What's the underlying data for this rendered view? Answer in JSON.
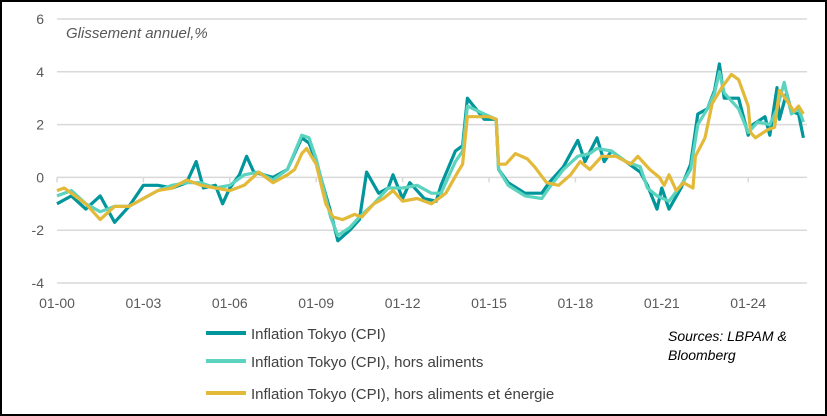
{
  "chart_data": {
    "type": "line",
    "subtitle": "Glissement annuel,%",
    "ylim": [
      -4,
      6
    ],
    "yticks": [
      "6",
      "4",
      "2",
      "0",
      "-2",
      "-4"
    ],
    "xticks": [
      "01-00",
      "01-03",
      "01-06",
      "01-09",
      "01-12",
      "01-15",
      "01-18",
      "01-21",
      "01-24"
    ],
    "grid": true,
    "legend_position": "bottom-left",
    "source": [
      "Sources: LBPAM &",
      "Bloomberg"
    ],
    "colors": {
      "tokyo_cpi": "#00969B",
      "ex_food": "#5BD3BE",
      "ex_food_energy": "#E3B93A"
    },
    "series": [
      {
        "name": "Inflation Tokyo (CPI)",
        "color": "#00969B",
        "points": [
          [
            "2000-01",
            -1.0
          ],
          [
            "2000-07",
            -0.7
          ],
          [
            "2001-01",
            -1.2
          ],
          [
            "2001-07",
            -0.7
          ],
          [
            "2002-01",
            -1.7
          ],
          [
            "2002-07",
            -1.1
          ],
          [
            "2003-01",
            -0.3
          ],
          [
            "2003-07",
            -0.3
          ],
          [
            "2004-01",
            -0.4
          ],
          [
            "2004-07",
            -0.2
          ],
          [
            "2004-11",
            0.6
          ],
          [
            "2005-02",
            -0.4
          ],
          [
            "2005-07",
            -0.3
          ],
          [
            "2005-10",
            -1.0
          ],
          [
            "2006-01",
            -0.4
          ],
          [
            "2006-05",
            0.1
          ],
          [
            "2006-08",
            0.8
          ],
          [
            "2006-11",
            0.2
          ],
          [
            "2007-07",
            0.0
          ],
          [
            "2008-01",
            0.3
          ],
          [
            "2008-07",
            1.5
          ],
          [
            "2008-10",
            1.3
          ],
          [
            "2009-01",
            0.6
          ],
          [
            "2009-07",
            -1.3
          ],
          [
            "2009-10",
            -2.4
          ],
          [
            "2010-03",
            -2.0
          ],
          [
            "2010-07",
            -1.6
          ],
          [
            "2010-10",
            0.2
          ],
          [
            "2011-03",
            -0.6
          ],
          [
            "2011-07",
            -0.4
          ],
          [
            "2011-09",
            0.1
          ],
          [
            "2012-01",
            -0.8
          ],
          [
            "2012-04",
            -0.2
          ],
          [
            "2012-10",
            -0.8
          ],
          [
            "2013-03",
            -0.9
          ],
          [
            "2013-05",
            -0.3
          ],
          [
            "2013-11",
            1.0
          ],
          [
            "2014-02",
            1.2
          ],
          [
            "2014-04",
            3.0
          ],
          [
            "2014-11",
            2.2
          ],
          [
            "2015-04",
            2.2
          ],
          [
            "2015-05",
            0.3
          ],
          [
            "2015-09",
            -0.2
          ],
          [
            "2016-04",
            -0.6
          ],
          [
            "2016-11",
            -0.6
          ],
          [
            "2017-02",
            -0.2
          ],
          [
            "2017-08",
            0.4
          ],
          [
            "2018-02",
            1.4
          ],
          [
            "2018-05",
            0.6
          ],
          [
            "2018-10",
            1.5
          ],
          [
            "2019-01",
            0.6
          ],
          [
            "2019-04",
            1.0
          ],
          [
            "2019-10",
            0.6
          ],
          [
            "2020-04",
            0.2
          ],
          [
            "2020-07",
            -0.3
          ],
          [
            "2020-11",
            -1.2
          ],
          [
            "2021-01",
            -0.4
          ],
          [
            "2021-04",
            -1.2
          ],
          [
            "2021-09",
            -0.4
          ],
          [
            "2022-01",
            0.5
          ],
          [
            "2022-04",
            2.4
          ],
          [
            "2022-08",
            2.6
          ],
          [
            "2022-11",
            3.3
          ],
          [
            "2023-01",
            4.3
          ],
          [
            "2023-03",
            3.0
          ],
          [
            "2023-09",
            3.0
          ],
          [
            "2024-01",
            1.6
          ],
          [
            "2024-03",
            2.0
          ],
          [
            "2024-08",
            2.3
          ],
          [
            "2024-10",
            1.6
          ],
          [
            "2025-01",
            3.4
          ],
          [
            "2025-02",
            2.2
          ],
          [
            "2025-05",
            3.2
          ],
          [
            "2025-07",
            2.5
          ],
          [
            "2025-10",
            2.4
          ],
          [
            "2025-12",
            1.5
          ]
        ]
      },
      {
        "name": "Inflation Tokyo (CPI), hors aliments",
        "color": "#5BD3BE",
        "points": [
          [
            "2000-01",
            -0.7
          ],
          [
            "2000-07",
            -0.5
          ],
          [
            "2001-01",
            -1.0
          ],
          [
            "2001-07",
            -1.3
          ],
          [
            "2002-01",
            -1.1
          ],
          [
            "2002-07",
            -1.1
          ],
          [
            "2003-01",
            -0.8
          ],
          [
            "2003-07",
            -0.5
          ],
          [
            "2004-01",
            -0.3
          ],
          [
            "2004-07",
            -0.2
          ],
          [
            "2005-01",
            -0.2
          ],
          [
            "2005-07",
            -0.4
          ],
          [
            "2006-01",
            -0.3
          ],
          [
            "2006-07",
            0.1
          ],
          [
            "2007-01",
            0.2
          ],
          [
            "2007-07",
            -0.1
          ],
          [
            "2008-01",
            0.3
          ],
          [
            "2008-07",
            1.6
          ],
          [
            "2008-10",
            1.5
          ],
          [
            "2009-01",
            0.7
          ],
          [
            "2009-07",
            -1.5
          ],
          [
            "2009-10",
            -2.2
          ],
          [
            "2010-03",
            -1.9
          ],
          [
            "2010-07",
            -1.5
          ],
          [
            "2011-01",
            -1.0
          ],
          [
            "2011-07",
            -0.4
          ],
          [
            "2012-01",
            -0.4
          ],
          [
            "2012-07",
            -0.3
          ],
          [
            "2013-01",
            -0.6
          ],
          [
            "2013-05",
            -0.6
          ],
          [
            "2013-11",
            0.6
          ],
          [
            "2014-02",
            1.0
          ],
          [
            "2014-04",
            2.7
          ],
          [
            "2014-11",
            2.4
          ],
          [
            "2015-04",
            2.2
          ],
          [
            "2015-05",
            0.3
          ],
          [
            "2015-09",
            -0.3
          ],
          [
            "2016-04",
            -0.7
          ],
          [
            "2016-11",
            -0.8
          ],
          [
            "2017-02",
            -0.4
          ],
          [
            "2017-08",
            0.3
          ],
          [
            "2018-02",
            0.8
          ],
          [
            "2018-07",
            0.9
          ],
          [
            "2018-10",
            1.1
          ],
          [
            "2019-04",
            1.0
          ],
          [
            "2019-10",
            0.6
          ],
          [
            "2020-04",
            0.4
          ],
          [
            "2020-07",
            -0.4
          ],
          [
            "2020-11",
            -0.7
          ],
          [
            "2021-04",
            -0.9
          ],
          [
            "2021-09",
            -0.3
          ],
          [
            "2022-01",
            0.3
          ],
          [
            "2022-04",
            2.0
          ],
          [
            "2022-08",
            2.6
          ],
          [
            "2022-11",
            3.2
          ],
          [
            "2023-01",
            4.0
          ],
          [
            "2023-03",
            3.2
          ],
          [
            "2023-09",
            2.6
          ],
          [
            "2024-01",
            1.7
          ],
          [
            "2024-05",
            2.1
          ],
          [
            "2024-10",
            2.0
          ],
          [
            "2025-01",
            2.6
          ],
          [
            "2025-04",
            3.6
          ],
          [
            "2025-07",
            2.4
          ],
          [
            "2025-10",
            2.6
          ],
          [
            "2025-12",
            2.1
          ]
        ]
      },
      {
        "name": "Inflation Tokyo (CPI), hors aliments et énergie",
        "color": "#E3B93A",
        "points": [
          [
            "2000-01",
            -0.5
          ],
          [
            "2000-04",
            -0.4
          ],
          [
            "2001-01",
            -1.0
          ],
          [
            "2001-07",
            -1.6
          ],
          [
            "2002-01",
            -1.1
          ],
          [
            "2002-07",
            -1.1
          ],
          [
            "2003-01",
            -0.8
          ],
          [
            "2003-07",
            -0.5
          ],
          [
            "2004-01",
            -0.4
          ],
          [
            "2004-07",
            -0.1
          ],
          [
            "2005-01",
            -0.3
          ],
          [
            "2005-07",
            -0.4
          ],
          [
            "2006-01",
            -0.5
          ],
          [
            "2006-07",
            -0.3
          ],
          [
            "2007-01",
            0.2
          ],
          [
            "2007-07",
            -0.2
          ],
          [
            "2008-01",
            0.1
          ],
          [
            "2008-04",
            0.3
          ],
          [
            "2008-07",
            0.9
          ],
          [
            "2008-09",
            1.1
          ],
          [
            "2009-01",
            0.5
          ],
          [
            "2009-05",
            -1.0
          ],
          [
            "2009-08",
            -1.5
          ],
          [
            "2009-12",
            -1.6
          ],
          [
            "2010-05",
            -1.4
          ],
          [
            "2010-08",
            -1.5
          ],
          [
            "2011-01",
            -1.0
          ],
          [
            "2011-05",
            -0.8
          ],
          [
            "2011-09",
            -0.5
          ],
          [
            "2012-01",
            -0.9
          ],
          [
            "2012-07",
            -0.8
          ],
          [
            "2013-01",
            -1.0
          ],
          [
            "2013-07",
            -0.6
          ],
          [
            "2013-12",
            0.2
          ],
          [
            "2014-02",
            0.5
          ],
          [
            "2014-04",
            2.3
          ],
          [
            "2014-08",
            2.3
          ],
          [
            "2015-01",
            2.3
          ],
          [
            "2015-04",
            2.2
          ],
          [
            "2015-05",
            0.5
          ],
          [
            "2015-08",
            0.5
          ],
          [
            "2015-12",
            0.9
          ],
          [
            "2016-05",
            0.7
          ],
          [
            "2016-08",
            0.4
          ],
          [
            "2017-01",
            -0.2
          ],
          [
            "2017-06",
            -0.3
          ],
          [
            "2017-11",
            0.1
          ],
          [
            "2018-03",
            0.6
          ],
          [
            "2018-07",
            0.3
          ],
          [
            "2018-12",
            0.8
          ],
          [
            "2019-06",
            0.8
          ],
          [
            "2019-12",
            0.5
          ],
          [
            "2020-03",
            0.8
          ],
          [
            "2020-08",
            0.3
          ],
          [
            "2020-12",
            0.0
          ],
          [
            "2021-02",
            -0.3
          ],
          [
            "2021-04",
            0.1
          ],
          [
            "2021-07",
            -0.5
          ],
          [
            "2021-10",
            -0.2
          ],
          [
            "2022-02",
            -0.4
          ],
          [
            "2022-03",
            0.8
          ],
          [
            "2022-07",
            1.5
          ],
          [
            "2022-10",
            2.8
          ],
          [
            "2023-02",
            3.4
          ],
          [
            "2023-06",
            3.9
          ],
          [
            "2023-09",
            3.7
          ],
          [
            "2024-01",
            2.7
          ],
          [
            "2024-02",
            1.7
          ],
          [
            "2024-04",
            1.5
          ],
          [
            "2024-09",
            1.8
          ],
          [
            "2024-12",
            1.9
          ],
          [
            "2025-02",
            3.3
          ],
          [
            "2025-06",
            2.8
          ],
          [
            "2025-08",
            2.5
          ],
          [
            "2025-10",
            2.7
          ],
          [
            "2025-12",
            2.4
          ]
        ]
      }
    ]
  }
}
